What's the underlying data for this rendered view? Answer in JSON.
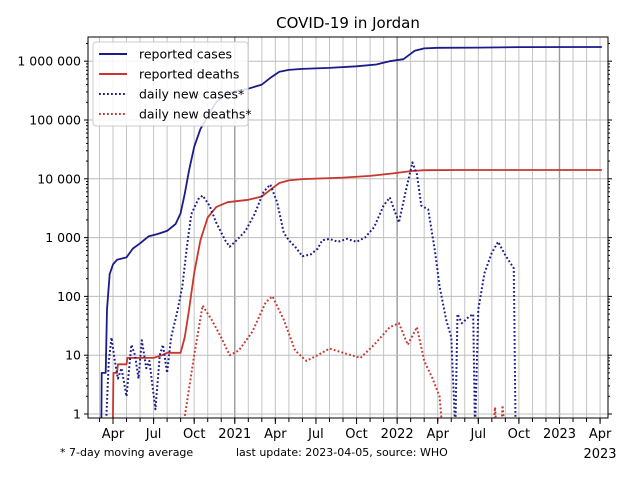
{
  "chart_data": {
    "type": "line",
    "title": "COVID-19 in Jordan",
    "xlabel": "",
    "ylabel": "",
    "yscale": "log",
    "ylim": [
      0.855,
      2600000
    ],
    "xlim": [
      "2020-02-05",
      "2023-04-17"
    ],
    "grid": true,
    "legend_position": "top-left",
    "yticks": [
      {
        "value": 1,
        "label": "1"
      },
      {
        "value": 10,
        "label": "10"
      },
      {
        "value": 100,
        "label": "100"
      },
      {
        "value": 1000,
        "label": "1 000"
      },
      {
        "value": 10000,
        "label": "10 000"
      },
      {
        "value": 100000,
        "label": "100 000"
      },
      {
        "value": 1000000,
        "label": "1 000 000"
      }
    ],
    "xticks": [
      {
        "date": "2020-04-01",
        "label": "Apr"
      },
      {
        "date": "2020-07-01",
        "label": "Jul"
      },
      {
        "date": "2020-10-01",
        "label": "Oct"
      },
      {
        "date": "2021-01-01",
        "label": "2021"
      },
      {
        "date": "2021-04-01",
        "label": "Apr"
      },
      {
        "date": "2021-07-01",
        "label": "Jul"
      },
      {
        "date": "2021-10-01",
        "label": "Oct"
      },
      {
        "date": "2022-01-01",
        "label": "2022"
      },
      {
        "date": "2022-04-01",
        "label": "Apr"
      },
      {
        "date": "2022-07-01",
        "label": "Jul"
      },
      {
        "date": "2022-10-01",
        "label": "Oct"
      },
      {
        "date": "2023-01-01",
        "label": "2023"
      },
      {
        "date": "2023-04-01",
        "label": "Apr"
      }
    ],
    "x_offset_label": "2023",
    "footnote": "* 7-day moving average",
    "source_note": "last update: 2023-04-05, source: WHO",
    "series": [
      {
        "name": "reported cases",
        "color": "#1b1b8a",
        "style": "solid",
        "points": [
          [
            "2020-03-05",
            0.5
          ],
          [
            "2020-03-06",
            5
          ],
          [
            "2020-03-15",
            5
          ],
          [
            "2020-03-18",
            60
          ],
          [
            "2020-03-24",
            240
          ],
          [
            "2020-04-01",
            350
          ],
          [
            "2020-04-10",
            420
          ],
          [
            "2020-05-01",
            460
          ],
          [
            "2020-05-15",
            650
          ],
          [
            "2020-06-01",
            800
          ],
          [
            "2020-06-20",
            1050
          ],
          [
            "2020-07-10",
            1150
          ],
          [
            "2020-08-01",
            1300
          ],
          [
            "2020-08-20",
            1700
          ],
          [
            "2020-09-01",
            2600
          ],
          [
            "2020-09-10",
            5500
          ],
          [
            "2020-09-20",
            14000
          ],
          [
            "2020-10-01",
            35000
          ],
          [
            "2020-10-15",
            70000
          ],
          [
            "2020-11-01",
            115000
          ],
          [
            "2020-11-20",
            200000
          ],
          [
            "2020-12-10",
            270000
          ],
          [
            "2021-01-01",
            310000
          ],
          [
            "2021-02-01",
            340000
          ],
          [
            "2021-03-01",
            400000
          ],
          [
            "2021-03-20",
            520000
          ],
          [
            "2021-04-10",
            660000
          ],
          [
            "2021-05-01",
            710000
          ],
          [
            "2021-06-01",
            740000
          ],
          [
            "2021-08-01",
            770000
          ],
          [
            "2021-10-01",
            820000
          ],
          [
            "2021-11-15",
            880000
          ],
          [
            "2021-12-15",
            1000000
          ],
          [
            "2022-01-15",
            1080000
          ],
          [
            "2022-02-10",
            1500000
          ],
          [
            "2022-03-01",
            1650000
          ],
          [
            "2022-04-01",
            1690000
          ],
          [
            "2022-07-01",
            1700000
          ],
          [
            "2022-10-01",
            1740000
          ],
          [
            "2023-04-05",
            1746000
          ]
        ]
      },
      {
        "name": "reported deaths",
        "color": "#c8372d",
        "style": "solid",
        "points": [
          [
            "2020-03-31",
            0.5
          ],
          [
            "2020-04-02",
            5
          ],
          [
            "2020-04-10",
            5
          ],
          [
            "2020-04-12",
            7
          ],
          [
            "2020-05-01",
            7
          ],
          [
            "2020-05-03",
            9
          ],
          [
            "2020-07-01",
            9
          ],
          [
            "2020-07-20",
            10
          ],
          [
            "2020-08-01",
            11
          ],
          [
            "2020-09-01",
            11
          ],
          [
            "2020-09-10",
            20
          ],
          [
            "2020-09-20",
            60
          ],
          [
            "2020-10-01",
            250
          ],
          [
            "2020-10-15",
            900
          ],
          [
            "2020-11-01",
            2200
          ],
          [
            "2020-11-20",
            3300
          ],
          [
            "2020-12-15",
            4000
          ],
          [
            "2021-02-01",
            4400
          ],
          [
            "2021-03-01",
            5000
          ],
          [
            "2021-03-20",
            6500
          ],
          [
            "2021-04-10",
            8500
          ],
          [
            "2021-05-01",
            9400
          ],
          [
            "2021-06-01",
            9900
          ],
          [
            "2021-09-01",
            10500
          ],
          [
            "2021-11-01",
            11200
          ],
          [
            "2021-12-20",
            12300
          ],
          [
            "2022-02-01",
            13500
          ],
          [
            "2022-03-01",
            14000
          ],
          [
            "2022-06-01",
            14100
          ],
          [
            "2023-04-05",
            14120
          ]
        ]
      },
      {
        "name": "daily new cases*",
        "color": "#1b1b8a",
        "style": "dotted",
        "points": [
          [
            "2020-03-15",
            0.5
          ],
          [
            "2020-03-22",
            8
          ],
          [
            "2020-03-28",
            20
          ],
          [
            "2020-04-05",
            8
          ],
          [
            "2020-04-12",
            4
          ],
          [
            "2020-04-20",
            6
          ],
          [
            "2020-05-01",
            2
          ],
          [
            "2020-05-12",
            15
          ],
          [
            "2020-05-20",
            10
          ],
          [
            "2020-05-28",
            4
          ],
          [
            "2020-06-05",
            18
          ],
          [
            "2020-06-15",
            6
          ],
          [
            "2020-06-22",
            8
          ],
          [
            "2020-07-05",
            1.2
          ],
          [
            "2020-07-15",
            10
          ],
          [
            "2020-07-22",
            15
          ],
          [
            "2020-08-01",
            5
          ],
          [
            "2020-08-10",
            20
          ],
          [
            "2020-08-25",
            60
          ],
          [
            "2020-09-05",
            150
          ],
          [
            "2020-09-15",
            700
          ],
          [
            "2020-09-25",
            2500
          ],
          [
            "2020-10-10",
            4500
          ],
          [
            "2020-10-20",
            5200
          ],
          [
            "2020-11-05",
            3500
          ],
          [
            "2020-11-20",
            1800
          ],
          [
            "2020-12-10",
            900
          ],
          [
            "2020-12-20",
            700
          ],
          [
            "2021-01-05",
            900
          ],
          [
            "2021-01-25",
            1300
          ],
          [
            "2021-02-15",
            2500
          ],
          [
            "2021-03-05",
            6000
          ],
          [
            "2021-03-20",
            8000
          ],
          [
            "2021-04-05",
            4000
          ],
          [
            "2021-04-20",
            1200
          ],
          [
            "2021-05-01",
            900
          ],
          [
            "2021-05-15",
            700
          ],
          [
            "2021-06-01",
            480
          ],
          [
            "2021-06-20",
            520
          ],
          [
            "2021-07-05",
            650
          ],
          [
            "2021-07-15",
            900
          ],
          [
            "2021-08-01",
            950
          ],
          [
            "2021-08-20",
            850
          ],
          [
            "2021-09-10",
            950
          ],
          [
            "2021-10-01",
            850
          ],
          [
            "2021-10-20",
            1000
          ],
          [
            "2021-11-10",
            1500
          ],
          [
            "2021-12-01",
            3500
          ],
          [
            "2021-12-15",
            4800
          ],
          [
            "2022-01-05",
            1800
          ],
          [
            "2022-01-20",
            6000
          ],
          [
            "2022-02-05",
            19000
          ],
          [
            "2022-02-15",
            12000
          ],
          [
            "2022-02-25",
            3500
          ],
          [
            "2022-03-10",
            3000
          ],
          [
            "2022-03-25",
            600
          ],
          [
            "2022-04-05",
            150
          ],
          [
            "2022-04-20",
            40
          ],
          [
            "2022-05-01",
            20
          ],
          [
            "2022-05-10",
            0.5
          ],
          [
            "2022-05-15",
            50
          ],
          [
            "2022-05-25",
            35
          ],
          [
            "2022-06-10",
            45
          ],
          [
            "2022-06-20",
            50
          ],
          [
            "2022-06-24",
            0.5
          ],
          [
            "2022-07-01",
            60
          ],
          [
            "2022-07-15",
            250
          ],
          [
            "2022-08-01",
            550
          ],
          [
            "2022-08-15",
            850
          ],
          [
            "2022-09-01",
            500
          ],
          [
            "2022-09-20",
            300
          ],
          [
            "2022-09-24",
            0.5
          ]
        ]
      },
      {
        "name": "daily new deaths*",
        "color": "#c8372d",
        "style": "dotted",
        "points": [
          [
            "2020-09-05",
            0.5
          ],
          [
            "2020-09-12",
            1.1
          ],
          [
            "2020-10-01",
            10
          ],
          [
            "2020-10-20",
            70
          ],
          [
            "2020-11-10",
            40
          ],
          [
            "2020-12-01",
            20
          ],
          [
            "2020-12-20",
            10
          ],
          [
            "2021-01-10",
            12
          ],
          [
            "2021-02-10",
            25
          ],
          [
            "2021-03-10",
            80
          ],
          [
            "2021-03-25",
            100
          ],
          [
            "2021-04-20",
            40
          ],
          [
            "2021-05-15",
            12
          ],
          [
            "2021-06-10",
            8
          ],
          [
            "2021-07-05",
            10
          ],
          [
            "2021-08-01",
            13
          ],
          [
            "2021-09-01",
            11
          ],
          [
            "2021-10-10",
            9
          ],
          [
            "2021-11-10",
            15
          ],
          [
            "2021-12-15",
            30
          ],
          [
            "2022-01-05",
            35
          ],
          [
            "2022-01-25",
            15
          ],
          [
            "2022-02-15",
            30
          ],
          [
            "2022-03-01",
            8
          ],
          [
            "2022-03-20",
            4
          ],
          [
            "2022-04-05",
            2
          ],
          [
            "2022-04-12",
            0.5
          ],
          [
            "2022-08-05",
            0.5
          ],
          [
            "2022-08-08",
            1.3
          ],
          [
            "2022-08-12",
            0.5
          ],
          [
            "2022-08-22",
            0.5
          ],
          [
            "2022-08-25",
            1.4
          ],
          [
            "2022-08-30",
            0.5
          ]
        ]
      }
    ]
  }
}
